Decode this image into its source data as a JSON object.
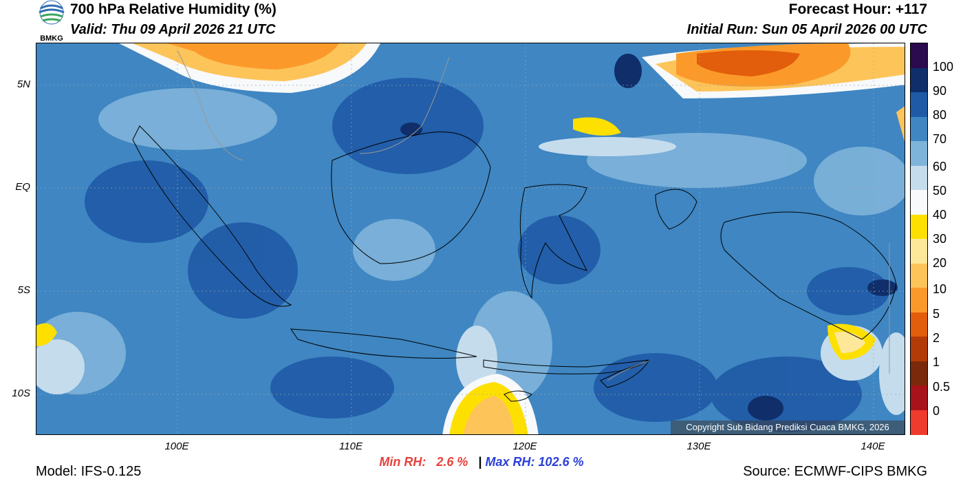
{
  "header": {
    "title": "700 hPa Relative Humidity (%)",
    "valid": "Valid: Thu 09 April 2026 21 UTC",
    "forecast_hour": "Forecast Hour: +117",
    "initial_run": "Initial Run: Sun 05 April 2026 00 UTC",
    "logo_text": "BMKG"
  },
  "map": {
    "region": "Indonesia",
    "lat_labels": [
      "5N",
      "EQ",
      "5S",
      "10S"
    ],
    "lon_labels": [
      "100E",
      "110E",
      "120E",
      "130E",
      "140E"
    ],
    "copyright": "Copyright Sub Bidang Prediksi Cuaca BMKG, 2026"
  },
  "legend": {
    "labels": [
      "100",
      "90",
      "80",
      "70",
      "60",
      "50",
      "40",
      "30",
      "20",
      "10",
      "5",
      "2",
      "1",
      "0.5",
      "0"
    ],
    "colors": [
      "#2b0a4e",
      "#0f2e6a",
      "#1f5aa6",
      "#3f86c2",
      "#7fb4da",
      "#c5dced",
      "#f7f9fb",
      "#fde000",
      "#fde89a",
      "#fdc45a",
      "#fb9a2a",
      "#e25d0c",
      "#b33b07",
      "#7a2a0a",
      "#a8121a",
      "#ee3b2e"
    ]
  },
  "footer": {
    "min_rh_label": "Min RH:",
    "min_rh_value": "2.6 %",
    "separator": "|",
    "max_rh_label": "Max RH:",
    "max_rh_value": "102.6 %",
    "model": "Model: IFS-0.125",
    "source": "Source: ECMWF-CIPS BMKG"
  }
}
